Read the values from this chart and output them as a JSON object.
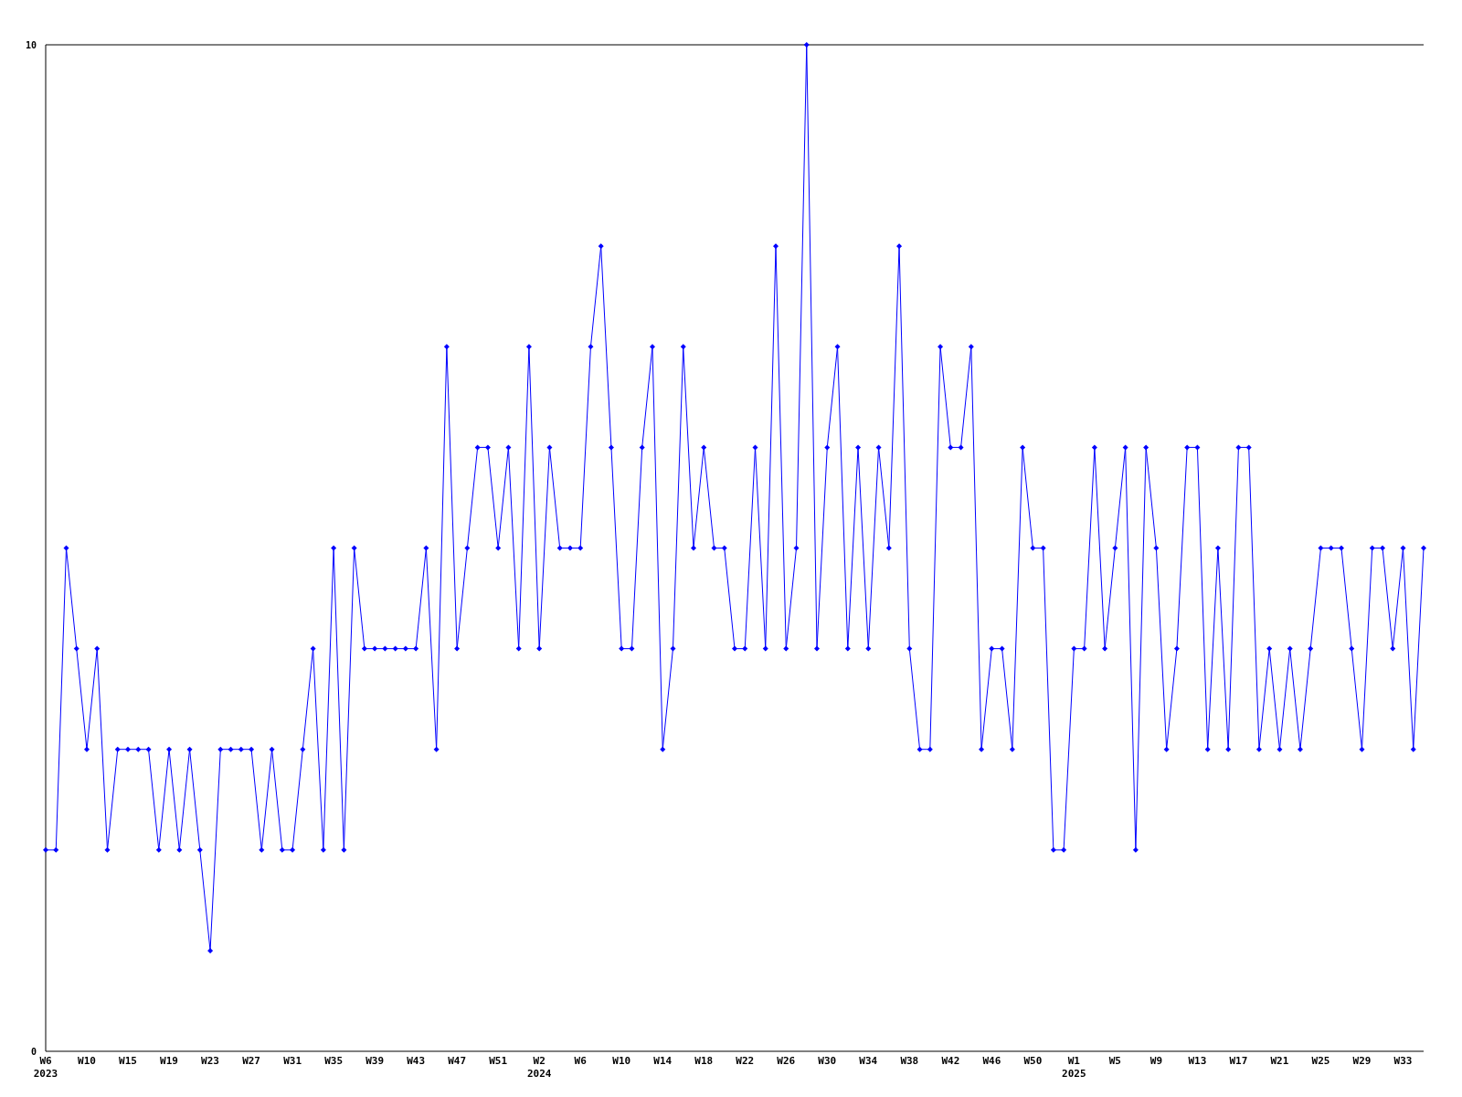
{
  "chart_data": {
    "type": "line",
    "categories": [
      "W6\n2023",
      null,
      null,
      null,
      "W10",
      null,
      null,
      null,
      "W15",
      null,
      null,
      null,
      "W19",
      null,
      null,
      null,
      "W23",
      null,
      null,
      null,
      "W27",
      null,
      null,
      null,
      "W31",
      null,
      null,
      null,
      "W35",
      null,
      null,
      null,
      "W39",
      null,
      null,
      null,
      "W43",
      null,
      null,
      null,
      "W47",
      null,
      null,
      null,
      "W51",
      null,
      null,
      null,
      "W2\n2024",
      null,
      null,
      null,
      "W6",
      null,
      null,
      null,
      "W10",
      null,
      null,
      null,
      "W14",
      null,
      null,
      null,
      "W18",
      null,
      null,
      null,
      "W22",
      null,
      null,
      null,
      "W26",
      null,
      null,
      null,
      "W30",
      null,
      null,
      null,
      "W34",
      null,
      null,
      null,
      "W38",
      null,
      null,
      null,
      "W42",
      null,
      null,
      null,
      "W46",
      null,
      null,
      null,
      "W50",
      null,
      null,
      null,
      "W1\n2025",
      null,
      null,
      null,
      "W5",
      null,
      null,
      null,
      "W9",
      null,
      null,
      null,
      "W13",
      null,
      null,
      null,
      "W17",
      null,
      null,
      null,
      "W21",
      null,
      null,
      null,
      "W25",
      null,
      null,
      null,
      "W29",
      null,
      null,
      null,
      "W33",
      null,
      null
    ],
    "series": [
      {
        "color": "#0000ff",
        "values": [
          2,
          2,
          5,
          4,
          3,
          4,
          2,
          3,
          3,
          3,
          3,
          2,
          3,
          2,
          3,
          2,
          1,
          3,
          3,
          3,
          3,
          2,
          3,
          2,
          2,
          3,
          4,
          2,
          5,
          2,
          5,
          4,
          4,
          4,
          4,
          4,
          4,
          5,
          3,
          7,
          4,
          5,
          6,
          6,
          5,
          6,
          4,
          7,
          4,
          6,
          5,
          5,
          5,
          7,
          8,
          6,
          4,
          4,
          6,
          7,
          3,
          4,
          7,
          5,
          6,
          5,
          5,
          4,
          4,
          6,
          4,
          8,
          4,
          5,
          10,
          4,
          6,
          7,
          4,
          6,
          4,
          6,
          5,
          8,
          4,
          3,
          3,
          7,
          6,
          6,
          7,
          3,
          4,
          4,
          3,
          6,
          5,
          5,
          2,
          2,
          4,
          4,
          6,
          4,
          5,
          6,
          2,
          6,
          5,
          3,
          4,
          6,
          6,
          3,
          5,
          3,
          6,
          6,
          3,
          4,
          3,
          4,
          3,
          4,
          5,
          5,
          5,
          4,
          3,
          5,
          5,
          4,
          5,
          3,
          5
        ]
      }
    ],
    "ylim": [
      0,
      10
    ],
    "yticks": [
      0,
      10
    ],
    "marker": "diamond",
    "grid": false
  }
}
